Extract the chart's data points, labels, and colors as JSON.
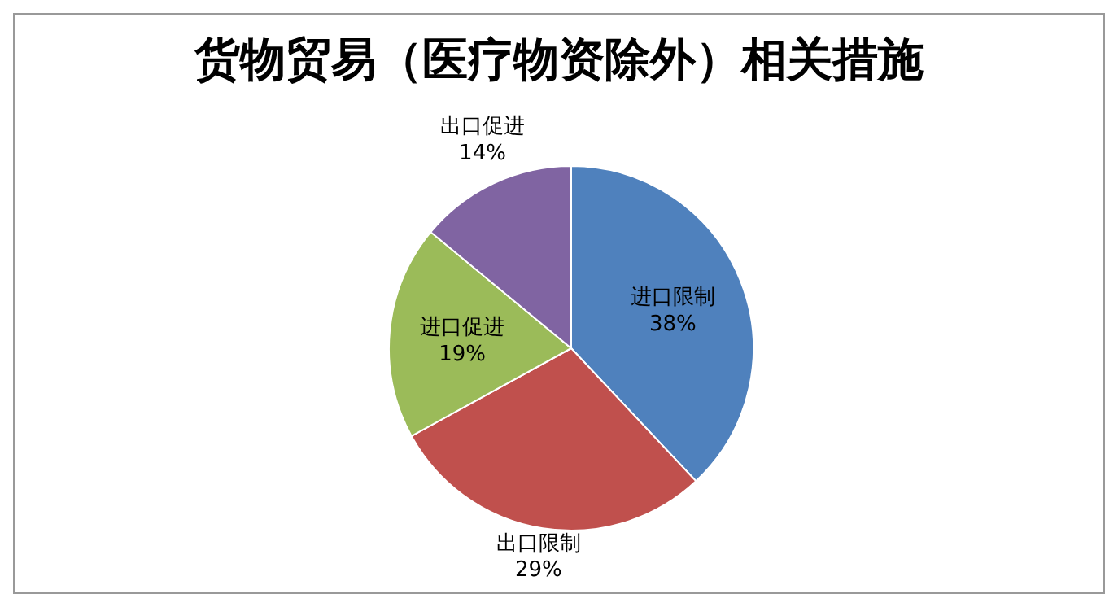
{
  "chart_data": {
    "type": "pie",
    "title": "货物贸易（医疗物资除外）相关措施",
    "categories": [
      "进口限制",
      "出口限制",
      "进口促进",
      "出口促进"
    ],
    "values": [
      38,
      29,
      19,
      14
    ],
    "value_labels": [
      "38%",
      "29%",
      "19%",
      "14%"
    ],
    "colors": [
      "#4f81bd",
      "#c0504d",
      "#9bbb59",
      "#8064a2"
    ]
  }
}
